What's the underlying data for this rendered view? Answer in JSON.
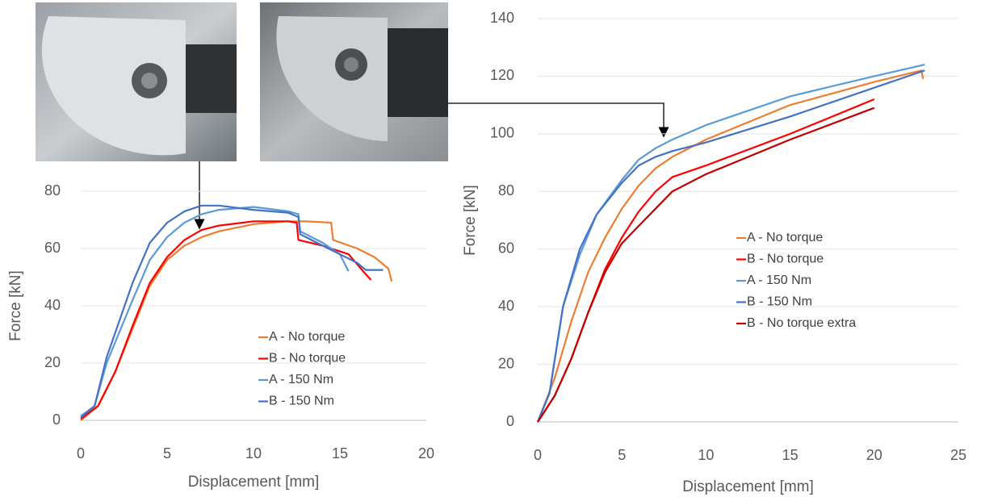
{
  "chart_data": [
    {
      "type": "line",
      "x_label": "Displacement [mm]",
      "y_label": "Force [kN]",
      "xlim": [
        0,
        20
      ],
      "xticks": [
        0,
        5,
        10,
        15,
        20
      ],
      "ylim": [
        0,
        80
      ],
      "yticks": [
        0,
        20,
        40,
        60,
        80
      ],
      "grid": true,
      "legend": "lower right",
      "series": [
        {
          "name": "A - No torque",
          "color": "#ED7D31",
          "x": [
            0,
            1,
            2,
            3,
            4,
            5,
            6,
            7,
            8,
            10,
            12,
            13,
            14.5,
            14.6,
            16,
            17,
            17.8,
            18
          ],
          "values": [
            0,
            5,
            17,
            32,
            47,
            56,
            61,
            64,
            66,
            68.5,
            69.5,
            69.5,
            69,
            63,
            60,
            57,
            53,
            48.5
          ]
        },
        {
          "name": "B - No torque",
          "color": "#FF0000",
          "x": [
            0,
            1,
            2,
            3,
            4,
            5,
            6,
            7,
            8,
            10,
            12,
            12.5,
            12.6,
            14,
            15.5,
            16.5,
            16.8
          ],
          "values": [
            0.5,
            5,
            17,
            33,
            48,
            57,
            63,
            66.5,
            68,
            69.5,
            69.5,
            69,
            63,
            61,
            58,
            51,
            49
          ]
        },
        {
          "name": "A - 150 Nm",
          "color": "#5B9BD5",
          "x": [
            0,
            0.8,
            1.5,
            3,
            4,
            5,
            6,
            7,
            8,
            10,
            12,
            12.6,
            12.7,
            14,
            15,
            15.5
          ],
          "values": [
            1.5,
            5,
            20,
            42,
            56,
            64,
            69,
            72,
            73.5,
            74.5,
            73,
            72,
            66,
            62,
            58,
            52
          ]
        },
        {
          "name": "B - 150 Nm",
          "color": "#4472C4",
          "x": [
            0,
            0.8,
            1.5,
            3,
            4,
            5,
            6,
            7,
            8,
            10,
            12,
            12.6,
            12.7,
            14,
            16,
            16.5,
            17.5
          ],
          "values": [
            1,
            5,
            22,
            48,
            62,
            69,
            73,
            75,
            75,
            73.5,
            72.5,
            71,
            65,
            61,
            55,
            52.5,
            52.5
          ]
        }
      ]
    },
    {
      "type": "line",
      "x_label": "Displacement [mm]",
      "y_label": "Force [kN]",
      "xlim": [
        0,
        25
      ],
      "xticks": [
        0,
        5,
        10,
        15,
        20,
        25
      ],
      "ylim": [
        0,
        140
      ],
      "yticks": [
        0,
        20,
        40,
        60,
        80,
        100,
        120,
        140
      ],
      "grid": true,
      "legend": "right",
      "series": [
        {
          "name": "A - No torque",
          "color": "#ED7D31",
          "x": [
            0,
            1,
            2,
            3,
            4,
            5,
            6,
            7,
            8,
            10,
            15,
            20,
            22.8,
            22.9
          ],
          "values": [
            0,
            15,
            35,
            52,
            64,
            74,
            82,
            88,
            92,
            98,
            110,
            118,
            122,
            119
          ]
        },
        {
          "name": "B - No torque",
          "color": "#FF0000",
          "x": [
            0,
            1,
            2,
            3,
            4,
            5,
            6,
            7,
            8,
            10,
            15,
            20
          ],
          "values": [
            0,
            9,
            22,
            38,
            53,
            64,
            73,
            80,
            85,
            89,
            100,
            112
          ]
        },
        {
          "name": "A - 150 Nm",
          "color": "#5B9BD5",
          "x": [
            0,
            0.7,
            1.5,
            2.5,
            3.5,
            5,
            6,
            7,
            8,
            10,
            15,
            20,
            23
          ],
          "values": [
            0,
            10,
            40,
            58,
            72,
            84,
            91,
            95,
            98,
            103,
            113,
            120,
            124
          ]
        },
        {
          "name": "B - 150 Nm",
          "color": "#4472C4",
          "x": [
            0,
            0.7,
            1.5,
            2.5,
            3.5,
            5,
            6,
            7,
            8,
            10,
            15,
            20,
            23
          ],
          "values": [
            0,
            10,
            40,
            60,
            72,
            83,
            89,
            92,
            94,
            97,
            106,
            116,
            122
          ]
        },
        {
          "name": "B - No torque extra",
          "color": "#C00000",
          "x": [
            0,
            1,
            2,
            3,
            4,
            5,
            6,
            7,
            8,
            10,
            15,
            20
          ],
          "values": [
            0,
            9,
            22,
            38,
            52,
            62,
            68,
            74,
            80,
            86,
            98,
            109
          ]
        }
      ]
    }
  ]
}
